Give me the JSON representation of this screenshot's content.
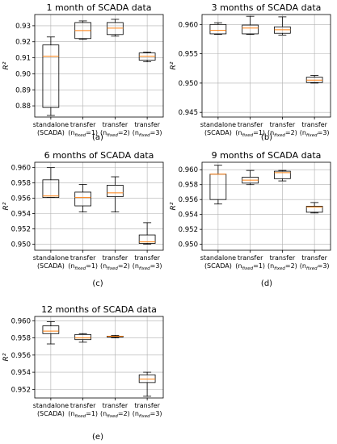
{
  "chart_data": [
    {
      "panel": "(a)",
      "type": "box",
      "title": "1 month of SCADA data",
      "ylabel": "R²",
      "ylim": [
        0.873,
        0.937
      ],
      "yticks": [
        0.88,
        0.89,
        0.9,
        0.91,
        0.92,
        0.93
      ],
      "ytick_labels": [
        "0.88",
        "0.89",
        "0.90",
        "0.91",
        "0.92",
        "0.93"
      ],
      "grid": true,
      "categories": [
        {
          "line1": "standalone",
          "line2": "(SCADA)"
        },
        {
          "line1": "transfer",
          "prefix": "(n",
          "sub": "fixed",
          "suffix": "=1)"
        },
        {
          "line1": "transfer",
          "prefix": "(n",
          "sub": "fixed",
          "suffix": "=2)"
        },
        {
          "line1": "transfer",
          "prefix": "(n",
          "sub": "fixed",
          "suffix": "=3)"
        }
      ],
      "boxes": [
        {
          "whislo": 0.874,
          "q1": 0.879,
          "med": 0.911,
          "q3": 0.918,
          "whishi": 0.923
        },
        {
          "whislo": 0.9215,
          "q1": 0.922,
          "med": 0.927,
          "q3": 0.932,
          "whishi": 0.933
        },
        {
          "whislo": 0.9235,
          "q1": 0.9245,
          "med": 0.9285,
          "q3": 0.932,
          "whishi": 0.934
        },
        {
          "whislo": 0.9075,
          "q1": 0.9085,
          "med": 0.911,
          "q3": 0.913,
          "whishi": 0.9135
        }
      ]
    },
    {
      "panel": "(b)",
      "type": "box",
      "title": "3 months of SCADA data",
      "ylabel": "R²",
      "ylim": [
        0.9442,
        0.9617
      ],
      "yticks": [
        0.945,
        0.95,
        0.955,
        0.96
      ],
      "ytick_labels": [
        "0.945",
        "0.950",
        "0.955",
        "0.960"
      ],
      "grid": true,
      "categories": [
        {
          "line1": "standalone",
          "line2": "(SCADA)"
        },
        {
          "line1": "transfer",
          "prefix": "(n",
          "sub": "fixed",
          "suffix": "=1)"
        },
        {
          "line1": "transfer",
          "prefix": "(n",
          "sub": "fixed",
          "suffix": "=2)"
        },
        {
          "line1": "transfer",
          "prefix": "(n",
          "sub": "fixed",
          "suffix": "=3)"
        }
      ],
      "boxes": [
        {
          "whislo": 0.9583,
          "q1": 0.9584,
          "med": 0.959,
          "q3": 0.96,
          "whishi": 0.9603
        },
        {
          "whislo": 0.9583,
          "q1": 0.9584,
          "med": 0.9594,
          "q3": 0.9599,
          "whishi": 0.9614
        },
        {
          "whislo": 0.9582,
          "q1": 0.9585,
          "med": 0.9591,
          "q3": 0.9596,
          "whishi": 0.9613
        },
        {
          "whislo": 0.95,
          "q1": 0.9501,
          "med": 0.9505,
          "q3": 0.951,
          "whishi": 0.9513
        }
      ]
    },
    {
      "panel": "(c)",
      "type": "box",
      "title": "6 months of SCADA data",
      "ylabel": "R²",
      "ylim": [
        0.9492,
        0.9607
      ],
      "yticks": [
        0.95,
        0.952,
        0.954,
        0.956,
        0.958,
        0.96
      ],
      "ytick_labels": [
        "0.950",
        "0.952",
        "0.954",
        "0.956",
        "0.958",
        "0.960"
      ],
      "grid": true,
      "categories": [
        {
          "line1": "standalone",
          "line2": "(SCADA)"
        },
        {
          "line1": "transfer",
          "prefix": "(n",
          "sub": "fixed",
          "suffix": "=1)"
        },
        {
          "line1": "transfer",
          "prefix": "(n",
          "sub": "fixed",
          "suffix": "=2)"
        },
        {
          "line1": "transfer",
          "prefix": "(n",
          "sub": "fixed",
          "suffix": "=3)"
        }
      ],
      "boxes": [
        {
          "whislo": 0.9561,
          "q1": 0.9561,
          "med": 0.9563,
          "q3": 0.9584,
          "whishi": 0.96
        },
        {
          "whislo": 0.9542,
          "q1": 0.955,
          "med": 0.9561,
          "q3": 0.9568,
          "whishi": 0.9578
        },
        {
          "whislo": 0.9542,
          "q1": 0.9562,
          "med": 0.9567,
          "q3": 0.9577,
          "whishi": 0.9588
        },
        {
          "whislo": 0.95,
          "q1": 0.9501,
          "med": 0.9503,
          "q3": 0.9512,
          "whishi": 0.9528
        }
      ]
    },
    {
      "panel": "(d)",
      "type": "box",
      "title": "9 months of SCADA data",
      "ylabel": "R²",
      "ylim": [
        0.9492,
        0.961
      ],
      "yticks": [
        0.95,
        0.952,
        0.954,
        0.956,
        0.958,
        0.96
      ],
      "ytick_labels": [
        "0.950",
        "0.952",
        "0.954",
        "0.956",
        "0.958",
        "0.960"
      ],
      "grid": true,
      "categories": [
        {
          "line1": "standalone",
          "line2": "(SCADA)"
        },
        {
          "line1": "transfer",
          "prefix": "(n",
          "sub": "fixed",
          "suffix": "=1)"
        },
        {
          "line1": "transfer",
          "prefix": "(n",
          "sub": "fixed",
          "suffix": "=2)"
        },
        {
          "line1": "transfer",
          "prefix": "(n",
          "sub": "fixed",
          "suffix": "=3)"
        }
      ],
      "boxes": [
        {
          "whislo": 0.9554,
          "q1": 0.956,
          "med": 0.9594,
          "q3": 0.9594,
          "whishi": 0.9606
        },
        {
          "whislo": 0.958,
          "q1": 0.9582,
          "med": 0.9586,
          "q3": 0.959,
          "whishi": 0.9599
        },
        {
          "whislo": 0.9585,
          "q1": 0.9588,
          "med": 0.9596,
          "q3": 0.9598,
          "whishi": 0.9599
        },
        {
          "whislo": 0.9542,
          "q1": 0.9543,
          "med": 0.955,
          "q3": 0.9551,
          "whishi": 0.9556
        }
      ]
    },
    {
      "panel": "(e)",
      "type": "box",
      "title": "12 months of SCADA data",
      "ylabel": "R²",
      "ylim": [
        0.951,
        0.9605
      ],
      "yticks": [
        0.952,
        0.954,
        0.956,
        0.958,
        0.96
      ],
      "ytick_labels": [
        "0.952",
        "0.954",
        "0.956",
        "0.958",
        "0.960"
      ],
      "grid": true,
      "categories": [
        {
          "line1": "standalone",
          "line2": "(SCADA)"
        },
        {
          "line1": "transfer",
          "prefix": "(n",
          "sub": "fixed",
          "suffix": "=1)"
        },
        {
          "line1": "transfer",
          "prefix": "(n",
          "sub": "fixed",
          "suffix": "=2)"
        },
        {
          "line1": "transfer",
          "prefix": "(n",
          "sub": "fixed",
          "suffix": "=3)"
        }
      ],
      "boxes": [
        {
          "whislo": 0.9573,
          "q1": 0.9585,
          "med": 0.9588,
          "q3": 0.9594,
          "whishi": 0.9599
        },
        {
          "whislo": 0.9575,
          "q1": 0.9578,
          "med": 0.958,
          "q3": 0.9584,
          "whishi": 0.9585
        },
        {
          "whislo": 0.958,
          "q1": 0.9581,
          "med": 0.9582,
          "q3": 0.9582,
          "whishi": 0.9583
        },
        {
          "whislo": 0.9512,
          "q1": 0.9528,
          "med": 0.9532,
          "q3": 0.9537,
          "whishi": 0.954
        }
      ]
    }
  ],
  "colors": {
    "box_edge": "#000000",
    "median": "#ff7f0e",
    "grid": "#b0b0b0",
    "axis": "#000000"
  }
}
